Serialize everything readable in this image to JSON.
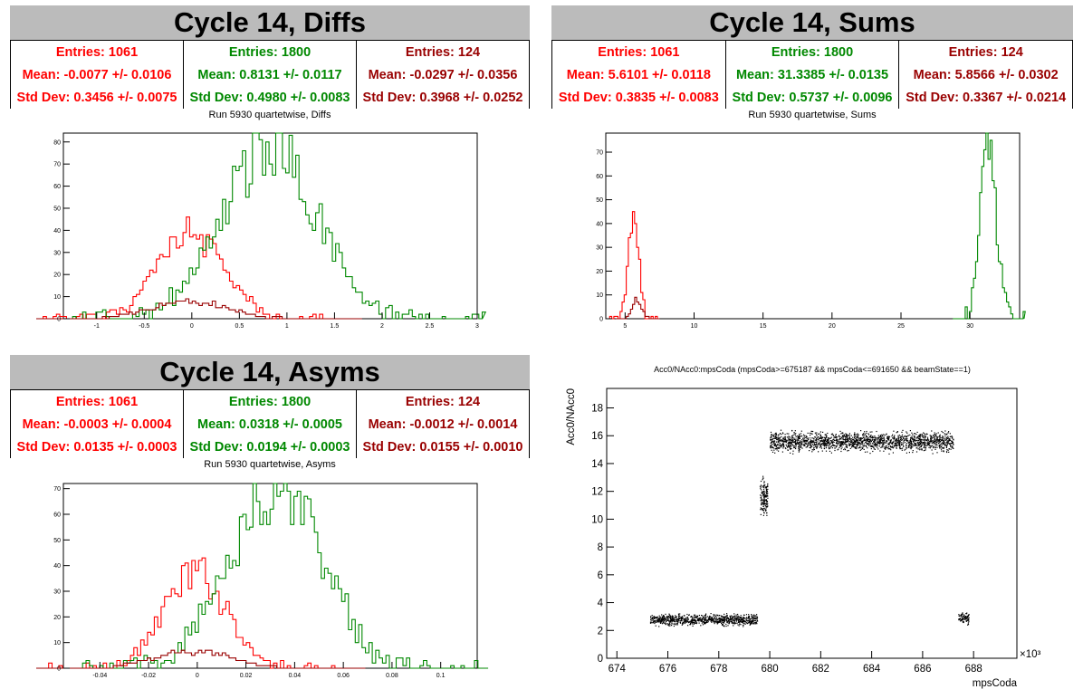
{
  "colors": {
    "red": "#ff0000",
    "green": "#008800",
    "darkred": "#990000"
  },
  "panels": [
    {
      "title": "Cycle 14, Diffs",
      "subtitle": "Run 5930 quartetwise, Diffs",
      "stats": [
        {
          "entries": "Entries: 1061",
          "mean": "Mean: -0.0077 +/- 0.0106",
          "std": "Std Dev: 0.3456 +/- 0.0075"
        },
        {
          "entries": "Entries: 1800",
          "mean": "Mean: 0.8131 +/- 0.0117",
          "std": "Std Dev: 0.4980 +/- 0.0083"
        },
        {
          "entries": "Entries: 124",
          "mean": "Mean: -0.0297 +/- 0.0356",
          "std": "Std Dev: 0.3968 +/- 0.0252"
        }
      ]
    },
    {
      "title": "Cycle 14, Sums",
      "subtitle": "Run 5930 quartetwise, Sums",
      "stats": [
        {
          "entries": "Entries: 1061",
          "mean": "Mean: 5.6101 +/- 0.0118",
          "std": "Std Dev: 0.3835 +/- 0.0083"
        },
        {
          "entries": "Entries: 1800",
          "mean": "Mean: 31.3385 +/- 0.0135",
          "std": "Std Dev: 0.5737 +/- 0.0096"
        },
        {
          "entries": "Entries: 124",
          "mean": "Mean: 5.8566 +/- 0.0302",
          "std": "Std Dev: 0.3367 +/- 0.0214"
        }
      ]
    },
    {
      "title": "Cycle 14, Asyms",
      "subtitle": "Run 5930 quartetwise, Asyms",
      "stats": [
        {
          "entries": "Entries: 1061",
          "mean": "Mean: -0.0003 +/- 0.0004",
          "std": "Std Dev: 0.0135 +/- 0.0003"
        },
        {
          "entries": "Entries: 1800",
          "mean": "Mean: 0.0318 +/- 0.0005",
          "std": "Std Dev: 0.0194 +/- 0.0003"
        },
        {
          "entries": "Entries: 124",
          "mean": "Mean: -0.0012 +/- 0.0014",
          "std": "Std Dev: 0.0155 +/- 0.0010"
        }
      ]
    }
  ],
  "chart_data": [
    {
      "type": "line",
      "title": "Run 5930 quartetwise, Diffs",
      "xlim": [
        -1.35,
        3.0
      ],
      "ylim": [
        0,
        84
      ],
      "xticks": [
        -1,
        -0.5,
        0,
        0.5,
        1,
        1.5,
        2,
        2.5,
        3
      ],
      "yticks": [
        0,
        10,
        20,
        30,
        40,
        50,
        60,
        70,
        80
      ],
      "bin_width": 0.035,
      "series": [
        {
          "color": "red",
          "entries": 1061,
          "mean": -0.0077,
          "std": 0.3456,
          "peak": 40
        },
        {
          "color": "green",
          "entries": 1800,
          "mean": 0.8131,
          "std": 0.498,
          "peak": 79
        },
        {
          "color": "darkred",
          "entries": 124,
          "mean": -0.0297,
          "std": 0.3968,
          "peak": 8
        }
      ]
    },
    {
      "type": "line",
      "title": "Run 5930 quartetwise, Sums",
      "xlim": [
        3.6,
        33.6
      ],
      "ylim": [
        0,
        78
      ],
      "xticks": [
        5,
        10,
        15,
        20,
        25,
        30
      ],
      "yticks": [
        0,
        10,
        20,
        30,
        40,
        50,
        60,
        70
      ],
      "bin_width": 0.15,
      "series": [
        {
          "color": "red",
          "entries": 1061,
          "mean": 5.6101,
          "std": 0.3835,
          "peak": 45
        },
        {
          "color": "green",
          "entries": 1800,
          "mean": 31.3385,
          "std": 0.5737,
          "peak": 75
        },
        {
          "color": "darkred",
          "entries": 124,
          "mean": 5.8566,
          "std": 0.3367,
          "peak": 8
        }
      ]
    },
    {
      "type": "line",
      "title": "Run 5930 quartetwise, Asyms",
      "xlim": [
        -0.055,
        0.115
      ],
      "ylim": [
        0,
        72
      ],
      "xticks": [
        -0.04,
        -0.02,
        0,
        0.02,
        0.04,
        0.06,
        0.08,
        0.1
      ],
      "yticks": [
        0,
        10,
        20,
        30,
        40,
        50,
        60,
        70
      ],
      "bin_width": 0.0014,
      "series": [
        {
          "color": "red",
          "entries": 1061,
          "mean": -0.0003,
          "std": 0.0135,
          "peak": 37
        },
        {
          "color": "green",
          "entries": 1800,
          "mean": 0.0318,
          "std": 0.0194,
          "peak": 70
        },
        {
          "color": "darkred",
          "entries": 124,
          "mean": -0.0012,
          "std": 0.0155,
          "peak": 7
        }
      ]
    },
    {
      "type": "scatter",
      "title": "Acc0/NAcc0:mpsCoda (mpsCoda>=675187 && mpsCoda<=691650 && beamState==1)",
      "xlabel": "mpsCoda",
      "ylabel": "Acc0/NAcc0",
      "xscale_label": "×10³",
      "xlim": [
        673.6,
        689.7
      ],
      "ylim": [
        0,
        19.4
      ],
      "xticks": [
        674,
        676,
        678,
        680,
        682,
        684,
        686,
        688
      ],
      "yticks": [
        0,
        2,
        4,
        6,
        8,
        10,
        12,
        14,
        16,
        18
      ],
      "clusters": [
        {
          "x": [
            675.3,
            679.5
          ],
          "y_mean": 2.8,
          "y_spread": 0.25,
          "n": 900
        },
        {
          "x": [
            679.6,
            679.9
          ],
          "y_mean": 11.5,
          "y_spread": 0.9,
          "n": 160
        },
        {
          "x": [
            680.0,
            687.2
          ],
          "y_mean": 15.6,
          "y_spread": 0.45,
          "n": 1800
        },
        {
          "x": [
            687.4,
            687.8
          ],
          "y_mean": 2.9,
          "y_spread": 0.25,
          "n": 90
        }
      ]
    }
  ]
}
